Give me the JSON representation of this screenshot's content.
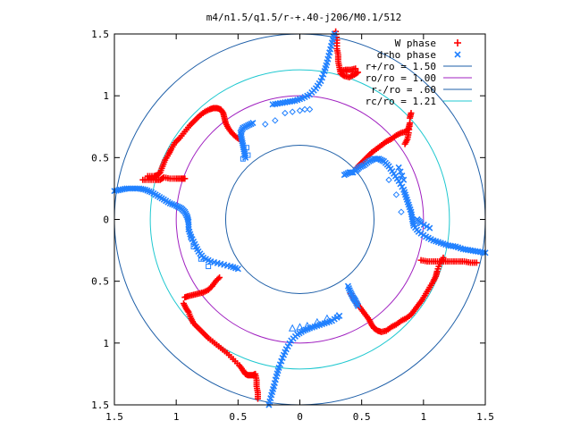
{
  "chart_data": {
    "type": "scatter",
    "title": "m4/n1.5/q1.5/r-+.40-j206/M0.1/512",
    "xlabel": "",
    "ylabel": "",
    "xlim": [
      -1.5,
      1.5
    ],
    "ylim": [
      -1.5,
      1.5
    ],
    "x_ticks": [
      {
        "v": -1.5,
        "label": "1.5"
      },
      {
        "v": -1,
        "label": "1"
      },
      {
        "v": -0.5,
        "label": "0.5"
      },
      {
        "v": 0,
        "label": "0"
      },
      {
        "v": 0.5,
        "label": "0.5"
      },
      {
        "v": 1,
        "label": "1"
      },
      {
        "v": 1.5,
        "label": "1.5"
      }
    ],
    "y_ticks": [
      {
        "v": 1.5,
        "label": "1.5"
      },
      {
        "v": 1,
        "label": "1"
      },
      {
        "v": 0.5,
        "label": "0.5"
      },
      {
        "v": 0,
        "label": "0"
      },
      {
        "v": -0.5,
        "label": "0.5"
      },
      {
        "v": -1,
        "label": "1"
      },
      {
        "v": -1.5,
        "label": "1.5"
      }
    ],
    "grid": false,
    "legend_position": "top-right",
    "circles": [
      {
        "name": "r+/ro = 1.50",
        "r": 1.5,
        "color": "#1e5fa8"
      },
      {
        "name": "ro/ro = 1.00",
        "r": 1.0,
        "color": "#a020c0"
      },
      {
        "name": "r-/ro = .60",
        "r": 0.6,
        "color": "#1e5fa8"
      },
      {
        "name": "rc/ro = 1.21",
        "r": 1.21,
        "color": "#20c8d0"
      }
    ],
    "series": [
      {
        "name": "W phase",
        "marker": "+",
        "color": "#ff0000",
        "points": [
          [
            -1.27,
            0.32
          ],
          [
            -1.22,
            0.32
          ],
          [
            -1.17,
            0.32
          ],
          [
            -1.13,
            0.32
          ],
          [
            -1.1,
            0.34
          ],
          [
            -1.05,
            0.33
          ],
          [
            -1.0,
            0.33
          ],
          [
            -0.96,
            0.33
          ],
          [
            -0.93,
            0.33
          ],
          [
            -1.23,
            0.35
          ],
          [
            -1.18,
            0.35
          ],
          [
            -1.15,
            0.36
          ],
          [
            -1.13,
            0.38
          ],
          [
            -1.11,
            0.43
          ],
          [
            -1.09,
            0.48
          ],
          [
            -1.06,
            0.53
          ],
          [
            -1.04,
            0.57
          ],
          [
            -1.01,
            0.62
          ],
          [
            -0.97,
            0.66
          ],
          [
            -0.93,
            0.71
          ],
          [
            -0.89,
            0.76
          ],
          [
            -0.85,
            0.8
          ],
          [
            -0.81,
            0.84
          ],
          [
            -0.77,
            0.87
          ],
          [
            -0.73,
            0.89
          ],
          [
            -0.7,
            0.9
          ],
          [
            -0.67,
            0.9
          ],
          [
            -0.64,
            0.89
          ],
          [
            -0.62,
            0.86
          ],
          [
            -0.61,
            0.82
          ],
          [
            -0.6,
            0.78
          ],
          [
            -0.58,
            0.74
          ],
          [
            -0.55,
            0.7
          ],
          [
            -0.52,
            0.67
          ],
          [
            -0.48,
            0.64
          ],
          [
            0.29,
            1.52
          ],
          [
            0.3,
            1.45
          ],
          [
            0.3,
            1.38
          ],
          [
            0.31,
            1.33
          ],
          [
            0.31,
            1.28
          ],
          [
            0.32,
            1.23
          ],
          [
            0.33,
            1.18
          ],
          [
            0.36,
            1.16
          ],
          [
            0.4,
            1.15
          ],
          [
            0.44,
            1.17
          ],
          [
            0.47,
            1.19
          ],
          [
            0.33,
            1.2
          ],
          [
            0.37,
            1.21
          ],
          [
            0.41,
            1.21
          ],
          [
            0.45,
            1.22
          ],
          [
            0.46,
            0.42
          ],
          [
            0.5,
            0.46
          ],
          [
            0.54,
            0.5
          ],
          [
            0.58,
            0.54
          ],
          [
            0.62,
            0.57
          ],
          [
            0.66,
            0.6
          ],
          [
            0.7,
            0.63
          ],
          [
            0.74,
            0.65
          ],
          [
            0.78,
            0.68
          ],
          [
            0.82,
            0.7
          ],
          [
            0.86,
            0.71
          ],
          [
            0.88,
            0.74
          ],
          [
            0.89,
            0.78
          ],
          [
            0.88,
            0.7
          ],
          [
            0.87,
            0.65
          ],
          [
            0.85,
            0.61
          ],
          [
            0.89,
            0.82
          ],
          [
            0.9,
            0.86
          ],
          [
            0.98,
            -0.33
          ],
          [
            1.03,
            -0.34
          ],
          [
            1.08,
            -0.34
          ],
          [
            1.13,
            -0.34
          ],
          [
            1.18,
            -0.34
          ],
          [
            1.23,
            -0.34
          ],
          [
            1.28,
            -0.34
          ],
          [
            1.33,
            -0.34
          ],
          [
            1.38,
            -0.35
          ],
          [
            1.43,
            -0.35
          ],
          [
            1.16,
            -0.31
          ],
          [
            1.13,
            -0.36
          ],
          [
            1.11,
            -0.42
          ],
          [
            1.1,
            -0.46
          ],
          [
            1.08,
            -0.5
          ],
          [
            1.05,
            -0.55
          ],
          [
            1.02,
            -0.6
          ],
          [
            0.99,
            -0.65
          ],
          [
            0.96,
            -0.69
          ],
          [
            0.93,
            -0.73
          ],
          [
            0.9,
            -0.77
          ],
          [
            0.86,
            -0.8
          ],
          [
            0.82,
            -0.82
          ],
          [
            0.78,
            -0.85
          ],
          [
            0.74,
            -0.87
          ],
          [
            0.7,
            -0.9
          ],
          [
            0.66,
            -0.91
          ],
          [
            0.63,
            -0.9
          ],
          [
            0.6,
            -0.88
          ],
          [
            0.58,
            -0.85
          ],
          [
            0.56,
            -0.81
          ],
          [
            0.53,
            -0.77
          ],
          [
            0.5,
            -0.73
          ],
          [
            0.47,
            -0.69
          ],
          [
            0.44,
            -0.65
          ],
          [
            0.41,
            -0.6
          ],
          [
            -0.94,
            -0.68
          ],
          [
            -0.92,
            -0.72
          ],
          [
            -0.9,
            -0.75
          ],
          [
            -0.88,
            -0.8
          ],
          [
            -0.86,
            -0.84
          ],
          [
            -0.82,
            -0.88
          ],
          [
            -0.78,
            -0.92
          ],
          [
            -0.74,
            -0.96
          ],
          [
            -0.69,
            -1.0
          ],
          [
            -0.64,
            -1.04
          ],
          [
            -0.59,
            -1.08
          ],
          [
            -0.54,
            -1.13
          ],
          [
            -0.49,
            -1.18
          ],
          [
            -0.46,
            -1.22
          ],
          [
            -0.44,
            -1.25
          ],
          [
            -0.42,
            -1.26
          ],
          [
            -0.4,
            -1.26
          ],
          [
            -0.38,
            -1.26
          ],
          [
            -0.36,
            -1.25
          ],
          [
            -0.35,
            -1.3
          ],
          [
            -0.35,
            -1.35
          ],
          [
            -0.34,
            -1.4
          ],
          [
            -0.34,
            -1.45
          ],
          [
            -0.93,
            -0.63
          ],
          [
            -0.9,
            -0.62
          ],
          [
            -0.86,
            -0.61
          ],
          [
            -0.82,
            -0.6
          ],
          [
            -0.78,
            -0.59
          ],
          [
            -0.74,
            -0.57
          ],
          [
            -0.71,
            -0.54
          ],
          [
            -0.68,
            -0.5
          ],
          [
            -0.65,
            -0.47
          ]
        ]
      },
      {
        "name": "drho phase",
        "marker": "x",
        "color": "#2080ff",
        "points": [
          [
            -1.5,
            0.23
          ],
          [
            -1.45,
            0.24
          ],
          [
            -1.4,
            0.25
          ],
          [
            -1.35,
            0.25
          ],
          [
            -1.3,
            0.25
          ],
          [
            -1.25,
            0.24
          ],
          [
            -1.2,
            0.22
          ],
          [
            -1.15,
            0.19
          ],
          [
            -1.1,
            0.16
          ],
          [
            -1.05,
            0.13
          ],
          [
            -1.0,
            0.11
          ],
          [
            -0.96,
            0.09
          ],
          [
            -0.93,
            0.06
          ],
          [
            -0.91,
            0.02
          ],
          [
            -0.9,
            -0.02
          ],
          [
            -0.9,
            -0.08
          ],
          [
            -0.88,
            -0.14
          ],
          [
            -0.85,
            -0.2
          ],
          [
            -0.82,
            -0.26
          ],
          [
            -0.78,
            -0.31
          ],
          [
            -0.72,
            -0.34
          ],
          [
            -0.64,
            -0.36
          ],
          [
            -0.56,
            -0.38
          ],
          [
            -0.5,
            -0.4
          ],
          [
            0.28,
            1.5
          ],
          [
            0.26,
            1.43
          ],
          [
            0.24,
            1.35
          ],
          [
            0.22,
            1.27
          ],
          [
            0.2,
            1.2
          ],
          [
            0.17,
            1.12
          ],
          [
            0.13,
            1.06
          ],
          [
            0.08,
            1.01
          ],
          [
            0.02,
            0.98
          ],
          [
            -0.04,
            0.96
          ],
          [
            -0.1,
            0.95
          ],
          [
            -0.16,
            0.94
          ],
          [
            -0.22,
            0.93
          ],
          [
            -0.38,
            0.78
          ],
          [
            -0.42,
            0.76
          ],
          [
            -0.46,
            0.74
          ],
          [
            -0.48,
            0.7
          ],
          [
            -0.47,
            0.65
          ],
          [
            -0.46,
            0.6
          ],
          [
            -0.45,
            0.55
          ],
          [
            -0.44,
            0.5
          ],
          [
            0.45,
            0.39
          ],
          [
            0.48,
            0.42
          ],
          [
            0.52,
            0.44
          ],
          [
            0.56,
            0.47
          ],
          [
            0.6,
            0.49
          ],
          [
            0.64,
            0.49
          ],
          [
            0.68,
            0.47
          ],
          [
            0.72,
            0.43
          ],
          [
            0.76,
            0.37
          ],
          [
            0.8,
            0.31
          ],
          [
            0.84,
            0.24
          ],
          [
            0.86,
            0.18
          ],
          [
            0.88,
            0.12
          ],
          [
            0.9,
            0.06
          ],
          [
            0.91,
            0.0
          ],
          [
            0.92,
            -0.05
          ],
          [
            0.96,
            -0.1
          ],
          [
            1.02,
            -0.14
          ],
          [
            1.08,
            -0.17
          ],
          [
            1.14,
            -0.19
          ],
          [
            1.2,
            -0.21
          ],
          [
            1.26,
            -0.22
          ],
          [
            1.32,
            -0.24
          ],
          [
            1.38,
            -0.25
          ],
          [
            1.44,
            -0.26
          ],
          [
            1.5,
            -0.27
          ],
          [
            0.36,
            0.36
          ],
          [
            0.4,
            0.38
          ],
          [
            0.43,
            0.38
          ],
          [
            -0.25,
            -1.5
          ],
          [
            -0.23,
            -1.42
          ],
          [
            -0.21,
            -1.35
          ],
          [
            -0.19,
            -1.27
          ],
          [
            -0.17,
            -1.2
          ],
          [
            -0.14,
            -1.12
          ],
          [
            -0.11,
            -1.05
          ],
          [
            -0.07,
            -0.98
          ],
          [
            -0.02,
            -0.93
          ],
          [
            0.03,
            -0.9
          ],
          [
            0.08,
            -0.88
          ],
          [
            0.14,
            -0.86
          ],
          [
            0.2,
            -0.84
          ],
          [
            0.26,
            -0.82
          ],
          [
            0.32,
            -0.78
          ],
          [
            0.39,
            -0.54
          ],
          [
            0.41,
            -0.59
          ],
          [
            0.43,
            -0.63
          ],
          [
            0.45,
            -0.66
          ],
          [
            0.47,
            -0.7
          ],
          [
            0.95,
            0.0
          ],
          [
            0.98,
            -0.03
          ],
          [
            1.05,
            -0.07
          ],
          [
            0.84,
            0.32
          ],
          [
            0.8,
            0.42
          ]
        ]
      }
    ],
    "open_markers": {
      "points_diamond": [
        [
          -0.12,
          0.86
        ],
        [
          -0.06,
          0.87
        ],
        [
          0.0,
          0.88
        ],
        [
          0.04,
          0.89
        ],
        [
          0.08,
          0.89
        ],
        [
          -0.2,
          0.8
        ],
        [
          -0.28,
          0.77
        ],
        [
          0.72,
          0.32
        ],
        [
          0.78,
          0.2
        ],
        [
          0.82,
          0.06
        ]
      ],
      "points_square": [
        [
          -0.43,
          0.58
        ],
        [
          -0.42,
          0.52
        ],
        [
          -0.46,
          0.49
        ],
        [
          -0.88,
          -0.15
        ],
        [
          -0.86,
          -0.22
        ],
        [
          -0.8,
          -0.32
        ],
        [
          -0.74,
          -0.38
        ]
      ],
      "points_triangle": [
        [
          0.3,
          -0.78
        ],
        [
          0.22,
          -0.8
        ],
        [
          0.14,
          -0.83
        ],
        [
          0.06,
          -0.86
        ],
        [
          0.0,
          -0.87
        ],
        [
          -0.06,
          -0.88
        ]
      ]
    }
  }
}
